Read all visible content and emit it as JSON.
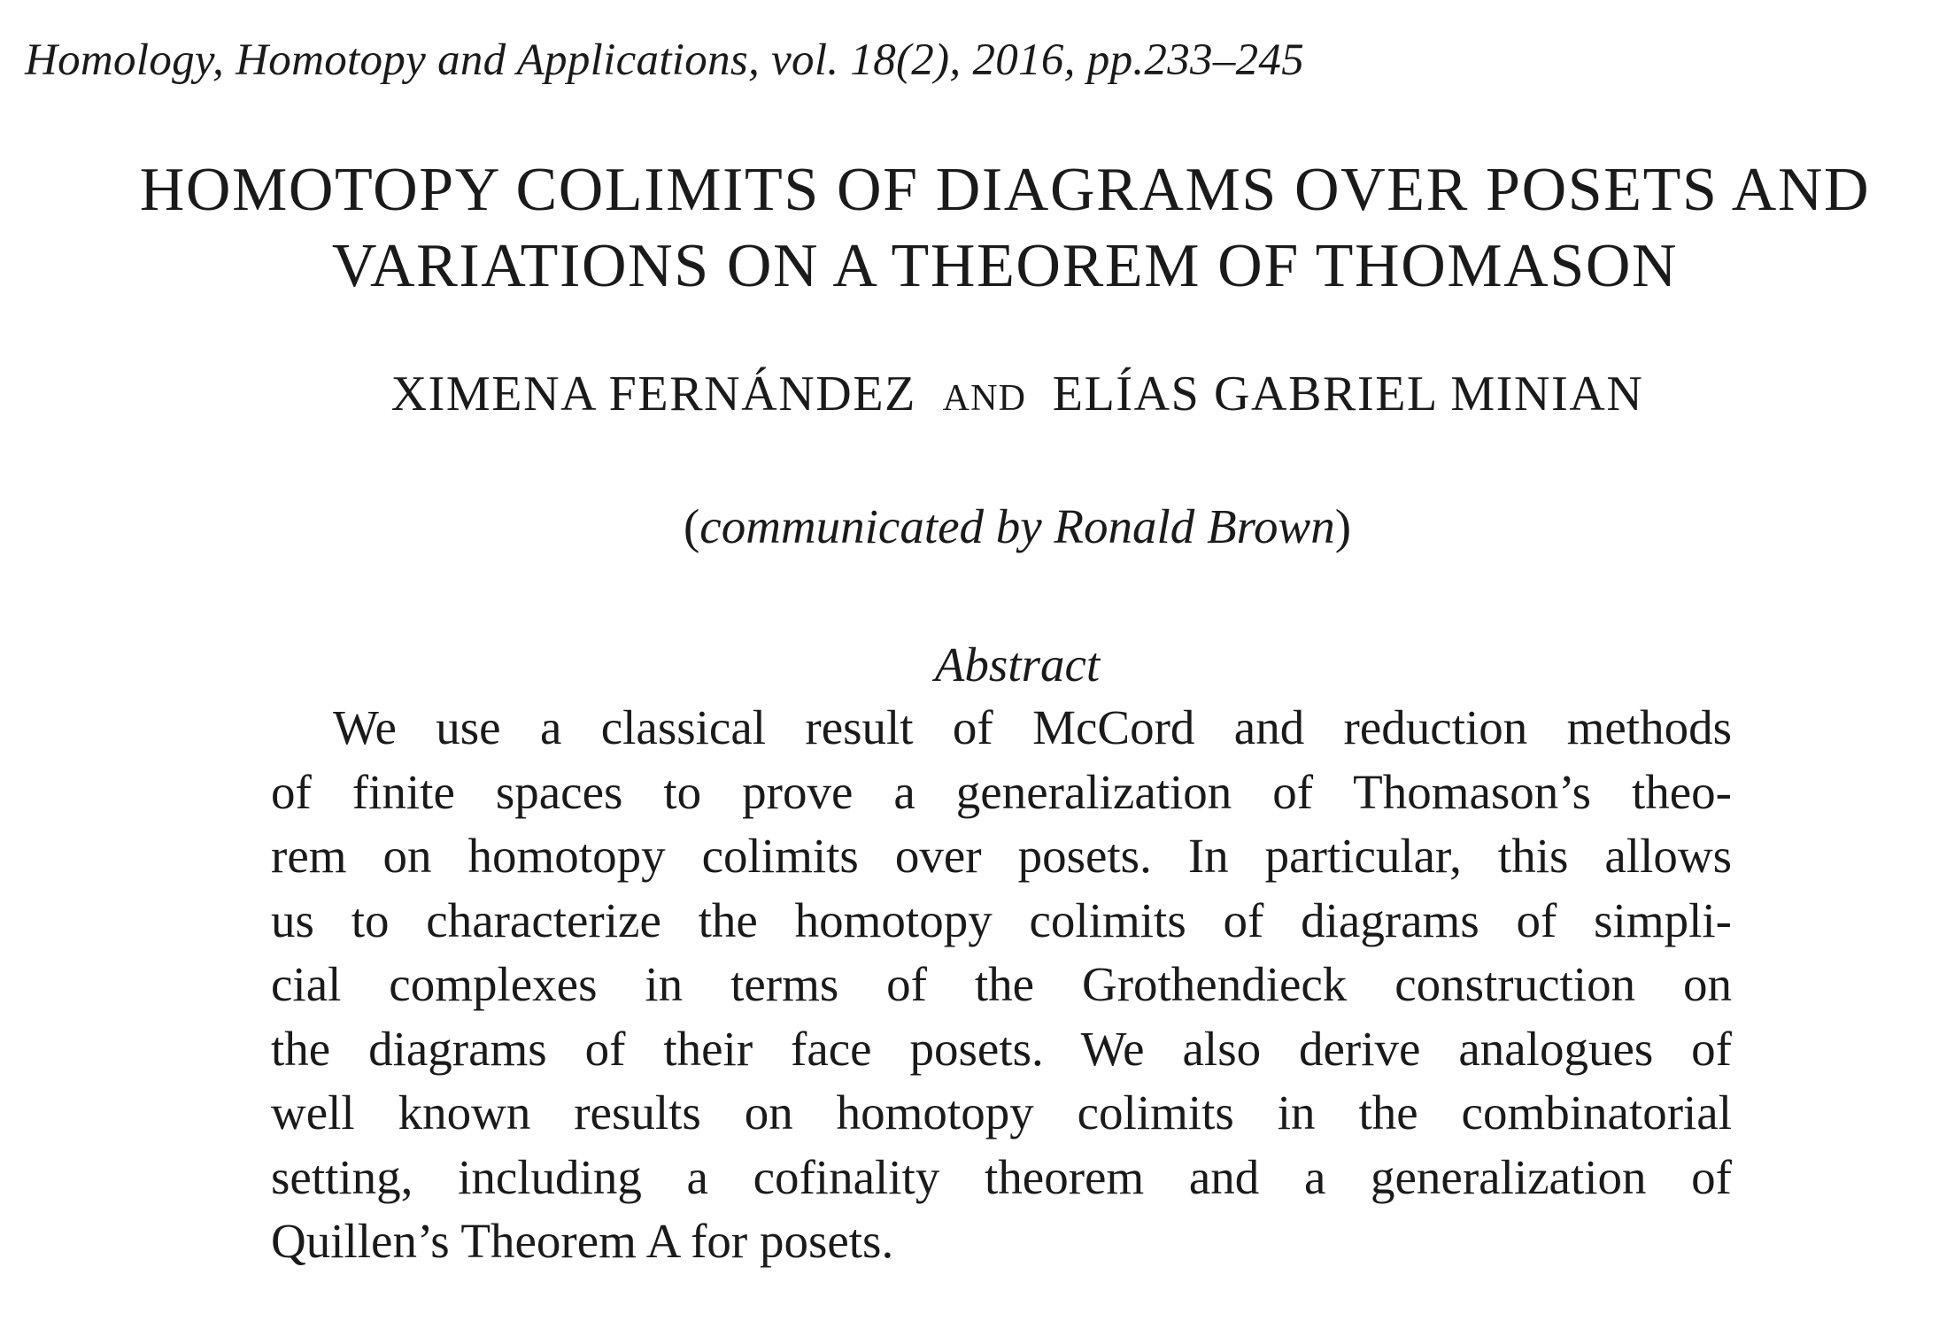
{
  "header": {
    "journal_line": "Homology, Homotopy and Applications, vol. 18(2), 2016, pp.233–245"
  },
  "title": {
    "line1": "HOMOTOPY COLIMITS OF DIAGRAMS OVER POSETS AND",
    "line2": "VARIATIONS ON A THEOREM OF THOMASON"
  },
  "authors": {
    "author1": "XIMENA FERNÁNDEZ",
    "conjunction": "AND",
    "author2": "ELÍAS GABRIEL MINIAN"
  },
  "communicated": {
    "open": "(",
    "text": "communicated by Ronald Brown",
    "close": ")"
  },
  "abstract": {
    "heading": "Abstract",
    "lines": [
      "We use a classical result of McCord and reduction methods",
      "of finite spaces to prove a generalization of Thomason’s theo-",
      "rem on homotopy colimits over posets. In particular, this allows",
      "us to characterize the homotopy colimits of diagrams of simpli-",
      "cial complexes in terms of the Grothendieck construction on",
      "the diagrams of their face posets. We also derive analogues of",
      "well known results on homotopy colimits in the combinatorial",
      "setting, including a cofinality theorem and a generalization of",
      "Quillen’s Theorem A for posets."
    ]
  }
}
